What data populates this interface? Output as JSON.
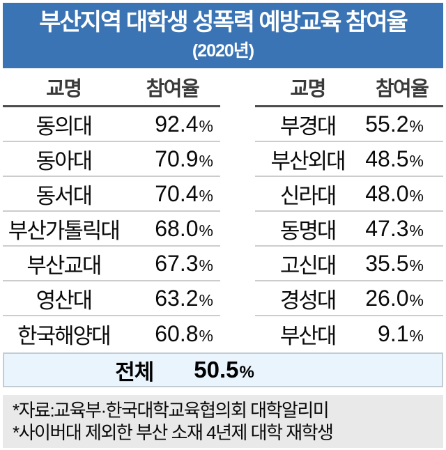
{
  "banner": {
    "title": "부산지역 대학생 성폭력 예방교육 참여율",
    "subtitle": "(2020년)"
  },
  "columns": {
    "name": "교명",
    "rate": "참여율"
  },
  "percent_sign": "%",
  "tables": {
    "left": {
      "rows": [
        {
          "name": "동의대",
          "value": "92.4"
        },
        {
          "name": "동아대",
          "value": "70.9"
        },
        {
          "name": "동서대",
          "value": "70.4"
        },
        {
          "name": "부산가톨릭대",
          "value": "68.0"
        },
        {
          "name": "부산교대",
          "value": "67.3"
        },
        {
          "name": "영산대",
          "value": "63.2"
        },
        {
          "name": "한국해양대",
          "value": "60.8"
        }
      ]
    },
    "right": {
      "rows": [
        {
          "name": "부경대",
          "value": "55.2"
        },
        {
          "name": "부산외대",
          "value": "48.5"
        },
        {
          "name": "신라대",
          "value": "48.0"
        },
        {
          "name": "동명대",
          "value": "47.3"
        },
        {
          "name": "고신대",
          "value": "35.5"
        },
        {
          "name": "경성대",
          "value": "26.0"
        },
        {
          "name": "부산대",
          "value": "9.1"
        }
      ]
    }
  },
  "total": {
    "label": "전체",
    "value": "50.5"
  },
  "footnotes": {
    "line1": "*자료:교육부·한국대학교육협의회 대학알리미",
    "line2": "*사이버대 제외한 부산 소재 4년제 대학 재학생"
  },
  "colors": {
    "banner_blue": "#3A74B4",
    "total_row_bg": "#EAF4FC",
    "footer_bg": "#E9E9E9",
    "header_rule": "#4c4c4c",
    "row_rule": "#cccccc"
  },
  "chart_data": {
    "type": "table",
    "title": "부산지역 대학생 성폭력 예방교육 참여율",
    "subtitle": "(2020년)",
    "columns": [
      "교명",
      "참여율"
    ],
    "categories": [
      "동의대",
      "동아대",
      "동서대",
      "부산가톨릭대",
      "부산교대",
      "영산대",
      "한국해양대",
      "부경대",
      "부산외대",
      "신라대",
      "동명대",
      "고신대",
      "경성대",
      "부산대"
    ],
    "values": [
      92.4,
      70.9,
      70.4,
      68.0,
      67.3,
      63.2,
      60.8,
      55.2,
      48.5,
      48.0,
      47.3,
      35.5,
      26.0,
      9.1
    ],
    "total": 50.5,
    "unit": "%",
    "layout": "two side-by-side two-column tables, full-width total row, footnote box"
  }
}
